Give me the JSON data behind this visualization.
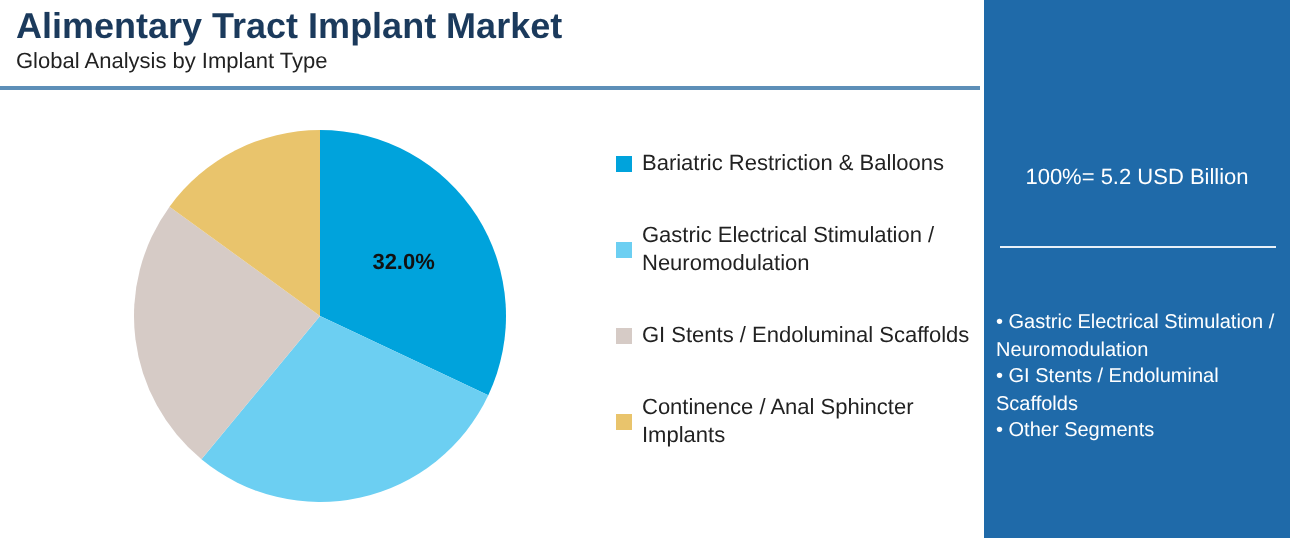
{
  "chart_data": {
    "type": "pie",
    "title": "Alimentary Tract Implant Market",
    "subtitle": "Global Analysis by Implant Type",
    "categories": [
      "Bariatric Restriction & Balloons",
      "Gastric Electrical Stimulation / Neuromodulation",
      "GI Stents / Endoluminal Scaffolds",
      "Continence / Anal Sphincter Implants"
    ],
    "values": [
      32.0,
      29,
      24,
      15
    ],
    "value_labels": [
      "32.0%",
      null,
      null,
      null
    ],
    "colors": [
      "#00a3dc",
      "#6ccff2",
      "#d6cbc6",
      "#e9c46c"
    ],
    "legend": "right",
    "annotations": [
      "100%= 5.2 USD Billion",
      "• Gastric Electrical Stimulation / Neuromodulation\n• GI Stents / Endoluminal Scaffolds\n• Other Segments"
    ]
  }
}
